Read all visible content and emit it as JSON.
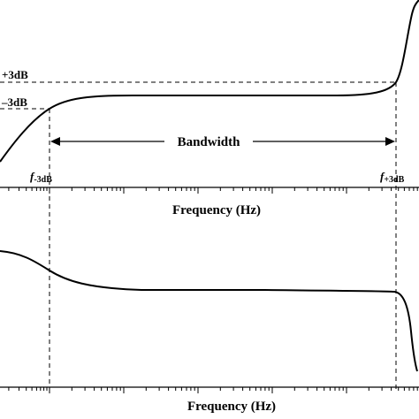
{
  "top_panel": {
    "level_plus": "+3dB",
    "level_minus": "–3dB",
    "bandwidth_label": "Bandwidth",
    "f_low_main": "f",
    "f_low_sub": "-3dB",
    "f_high_main": "f",
    "f_high_sub": "+3dB",
    "x_axis_label": "Frequency (Hz)"
  },
  "bottom_panel": {
    "x_axis_label": "Frequency (Hz)"
  },
  "colors": {
    "ink": "#000000",
    "background": "#ffffff"
  }
}
